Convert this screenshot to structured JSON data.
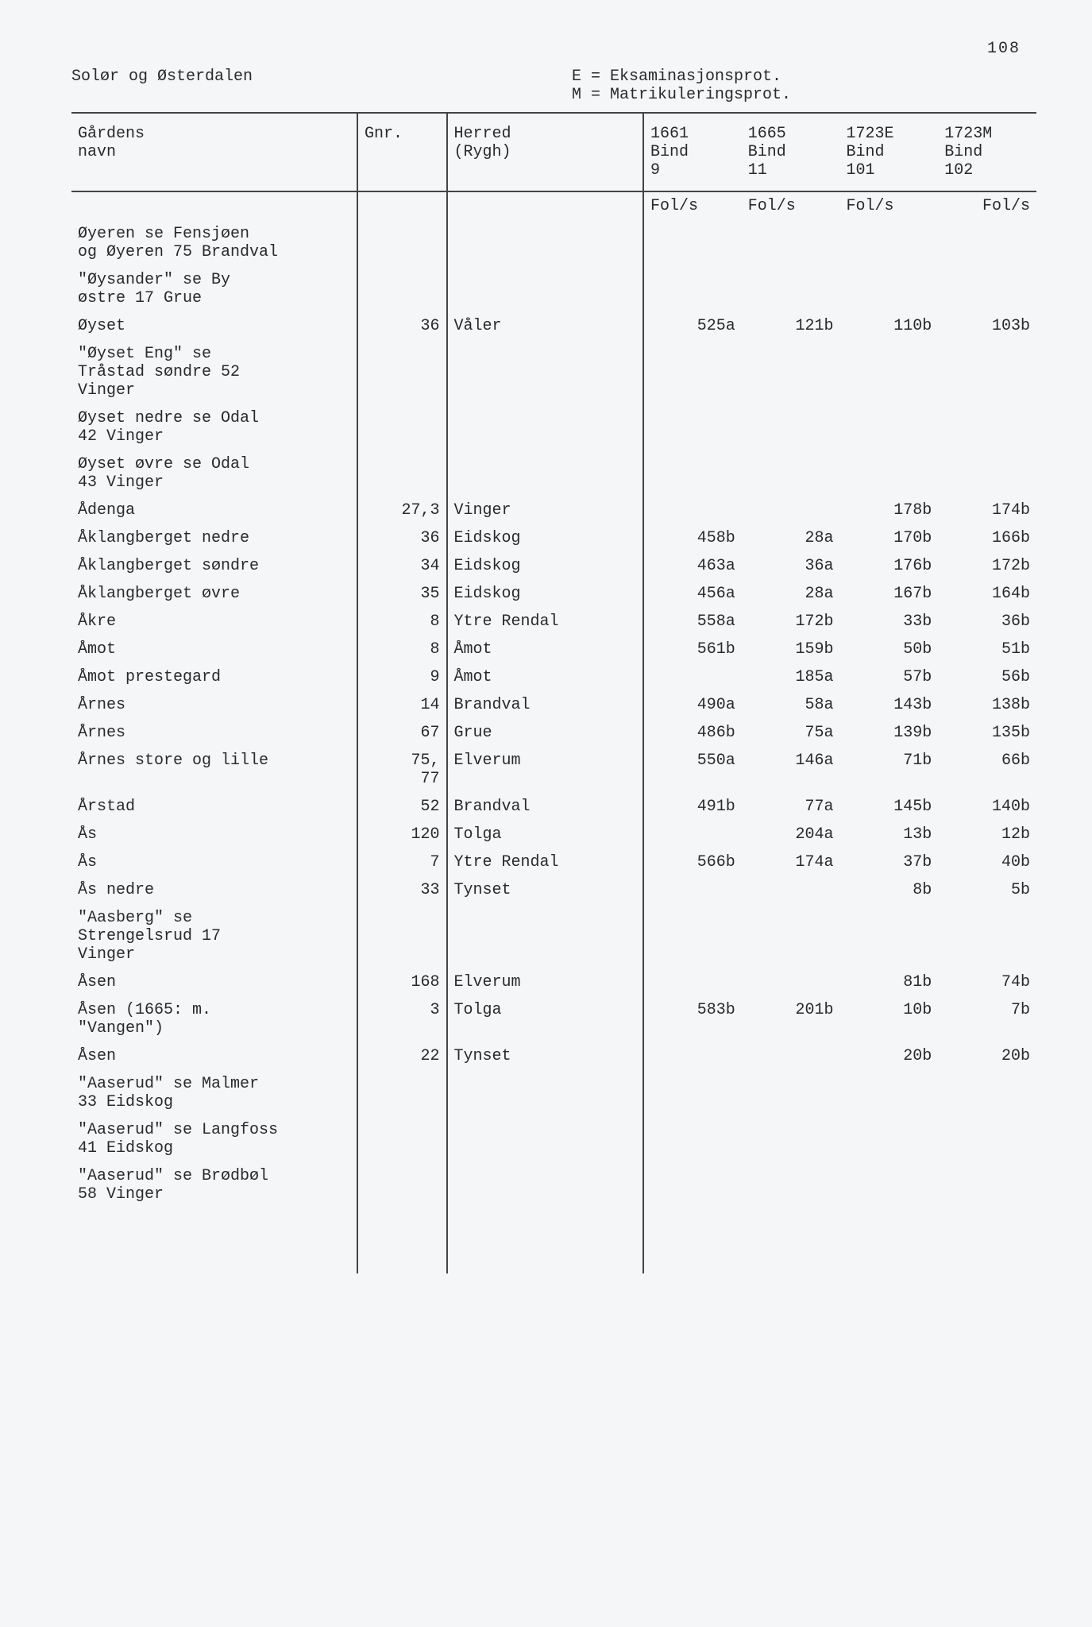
{
  "page_number": "108",
  "region_title": "Solør og Østerdalen",
  "legend": [
    "E = Eksaminasjonsprot.",
    "M = Matrikuleringsprot."
  ],
  "columns": {
    "name": "Gårdens\nnavn",
    "gnr": "Gnr.",
    "herred": "Herred\n(Rygh)",
    "c1": "1661\nBind\n9",
    "c2": "1665\nBind\n11",
    "c3": "1723E\nBind\n101",
    "c4": "1723M\nBind\n102"
  },
  "sub_header": "Fol/s",
  "rows": [
    {
      "name": "Øyeren se Fensjøen\nog Øyeren 75 Brandval",
      "gnr": "",
      "herred": "",
      "v1": "",
      "v2": "",
      "v3": "",
      "v4": ""
    },
    {
      "name": "\"Øysander\" se By\nøstre 17 Grue",
      "gnr": "",
      "herred": "",
      "v1": "",
      "v2": "",
      "v3": "",
      "v4": ""
    },
    {
      "name": "Øyset",
      "gnr": "36",
      "herred": "Våler",
      "v1": "525a",
      "v2": "121b",
      "v3": "110b",
      "v4": "103b"
    },
    {
      "name": "\"Øyset Eng\" se\nTråstad søndre 52\nVinger",
      "gnr": "",
      "herred": "",
      "v1": "",
      "v2": "",
      "v3": "",
      "v4": ""
    },
    {
      "name": "Øyset nedre se Odal\n42 Vinger",
      "gnr": "",
      "herred": "",
      "v1": "",
      "v2": "",
      "v3": "",
      "v4": ""
    },
    {
      "name": "Øyset øvre se Odal\n43 Vinger",
      "gnr": "",
      "herred": "",
      "v1": "",
      "v2": "",
      "v3": "",
      "v4": ""
    },
    {
      "name": "Ådenga",
      "gnr": "27,3",
      "herred": "Vinger",
      "v1": "",
      "v2": "",
      "v3": "178b",
      "v4": "174b"
    },
    {
      "name": "Åklangberget nedre",
      "gnr": "36",
      "herred": "Eidskog",
      "v1": "458b",
      "v2": "28a",
      "v3": "170b",
      "v4": "166b"
    },
    {
      "name": "Åklangberget søndre",
      "gnr": "34",
      "herred": "Eidskog",
      "v1": "463a",
      "v2": "36a",
      "v3": "176b",
      "v4": "172b"
    },
    {
      "name": "Åklangberget øvre",
      "gnr": "35",
      "herred": "Eidskog",
      "v1": "456a",
      "v2": "28a",
      "v3": "167b",
      "v4": "164b"
    },
    {
      "name": "Åkre",
      "gnr": "8",
      "herred": "Ytre Rendal",
      "v1": "558a",
      "v2": "172b",
      "v3": "33b",
      "v4": "36b"
    },
    {
      "name": "Åmot",
      "gnr": "8",
      "herred": "Åmot",
      "v1": "561b",
      "v2": "159b",
      "v3": "50b",
      "v4": "51b"
    },
    {
      "name": "Åmot prestegard",
      "gnr": "9",
      "herred": "Åmot",
      "v1": "",
      "v2": "185a",
      "v3": "57b",
      "v4": "56b"
    },
    {
      "name": "Årnes",
      "gnr": "14",
      "herred": "Brandval",
      "v1": "490a",
      "v2": "58a",
      "v3": "143b",
      "v4": "138b"
    },
    {
      "name": "Årnes",
      "gnr": "67",
      "herred": "Grue",
      "v1": "486b",
      "v2": "75a",
      "v3": "139b",
      "v4": "135b"
    },
    {
      "name": "Årnes store og lille",
      "gnr": "75,\n77",
      "herred": "Elverum",
      "v1": "550a",
      "v2": "146a",
      "v3": "71b",
      "v4": "66b"
    },
    {
      "name": "Årstad",
      "gnr": "52",
      "herred": "Brandval",
      "v1": "491b",
      "v2": "77a",
      "v3": "145b",
      "v4": "140b"
    },
    {
      "name": "Ås",
      "gnr": "120",
      "herred": "Tolga",
      "v1": "",
      "v2": "204a",
      "v3": "13b",
      "v4": "12b"
    },
    {
      "name": "Ås",
      "gnr": "7",
      "herred": "Ytre Rendal",
      "v1": "566b",
      "v2": "174a",
      "v3": "37b",
      "v4": "40b"
    },
    {
      "name": "Ås nedre",
      "gnr": "33",
      "herred": "Tynset",
      "v1": "",
      "v2": "",
      "v3": "8b",
      "v4": "5b"
    },
    {
      "name": "\"Aasberg\" se\nStrengelsrud 17\nVinger",
      "gnr": "",
      "herred": "",
      "v1": "",
      "v2": "",
      "v3": "",
      "v4": ""
    },
    {
      "name": "Åsen",
      "gnr": "168",
      "herred": "Elverum",
      "v1": "",
      "v2": "",
      "v3": "81b",
      "v4": "74b"
    },
    {
      "name": "Åsen (1665: m.\n\"Vangen\")",
      "gnr": "3",
      "herred": "Tolga",
      "v1": "583b",
      "v2": "201b",
      "v3": "10b",
      "v4": "7b"
    },
    {
      "name": "Åsen",
      "gnr": "22",
      "herred": "Tynset",
      "v1": "",
      "v2": "",
      "v3": "20b",
      "v4": "20b"
    },
    {
      "name": "\"Aaserud\" se Malmer\n33 Eidskog",
      "gnr": "",
      "herred": "",
      "v1": "",
      "v2": "",
      "v3": "",
      "v4": ""
    },
    {
      "name": "\"Aaserud\" se Langfoss\n41 Eidskog",
      "gnr": "",
      "herred": "",
      "v1": "",
      "v2": "",
      "v3": "",
      "v4": ""
    },
    {
      "name": "\"Aaserud\" se Brødbøl\n58 Vinger",
      "gnr": "",
      "herred": "",
      "v1": "",
      "v2": "",
      "v3": "",
      "v4": ""
    }
  ]
}
